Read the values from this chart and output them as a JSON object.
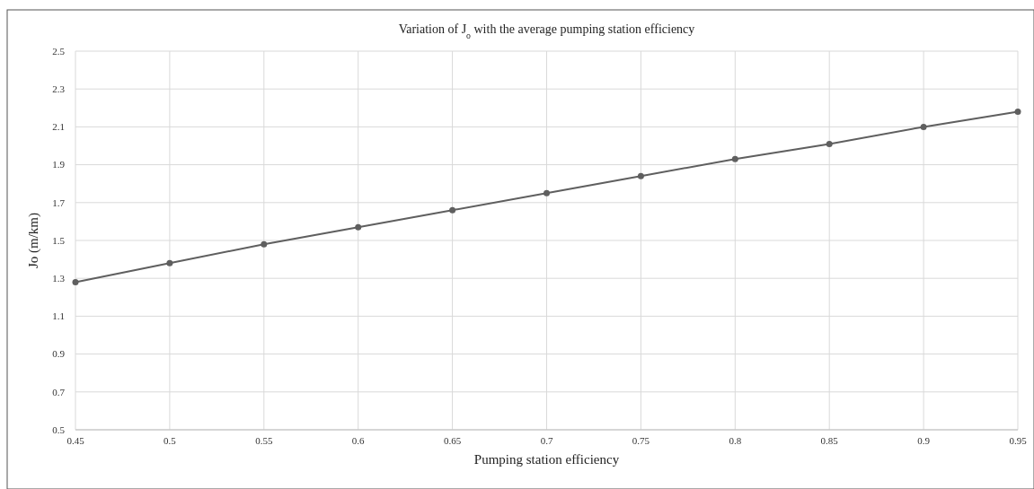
{
  "chart_data": {
    "type": "line",
    "title": "Variation of J$_{o}$ with the average pumping station efficiency",
    "xlabel": "Pumping station efficiency",
    "ylabel": "Jo (m/km)",
    "x": [
      0.45,
      0.5,
      0.55,
      0.6,
      0.65,
      0.7,
      0.75,
      0.8,
      0.85,
      0.9,
      0.95
    ],
    "series": [
      {
        "color": "#5f5f5f",
        "values": [
          1.28,
          1.38,
          1.48,
          1.57,
          1.66,
          1.75,
          1.84,
          1.93,
          2.01,
          2.1,
          2.18
        ]
      }
    ],
    "xlim": [
      0.45,
      0.95
    ],
    "xticks": [
      0.45,
      0.5,
      0.55,
      0.6,
      0.65,
      0.7,
      0.75,
      0.8,
      0.85,
      0.9,
      0.95
    ],
    "ylim": [
      0.5,
      2.5
    ],
    "yticks": [
      0.5,
      0.7,
      0.9,
      1.1,
      1.3,
      1.5,
      1.7,
      1.9,
      2.1,
      2.3,
      2.5
    ],
    "grid": true,
    "marker": "circle",
    "line_style": "solid"
  }
}
